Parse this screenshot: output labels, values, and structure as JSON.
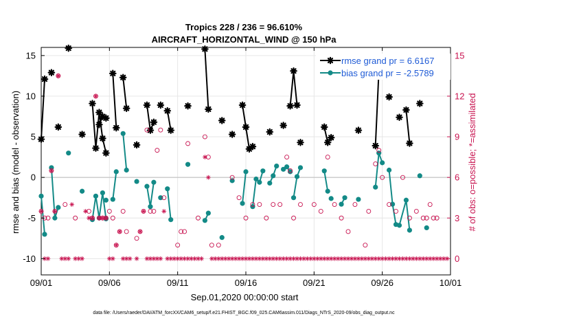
{
  "chart_data": {
    "type": "line",
    "title": "Tropics 228 / 236 = 96.610%",
    "subtitle": "AIRCRAFT_HORIZONTAL_WIND @ 150 hPa",
    "xlabel": "Sep.01,2020 00:00:00 start",
    "ylabel": "rmse and bias (model - observation)",
    "y2label": "# of obs: o=possible; *=assimilated",
    "footer": "data file: /Users/raeder/DAI/ATM_forcXX/CAM6_setup/f.e21.FHIST_BGC.f09_025.CAM6assim.011/Diags_NTrS_2020-09/obs_diag_output.nc",
    "xlim": [
      0,
      30
    ],
    "ylim": [
      -12,
      16
    ],
    "y2lim": [
      -1.2,
      15.6
    ],
    "xticks": [
      0,
      5,
      10,
      15,
      20,
      25,
      30
    ],
    "xtick_labels": [
      "09/01",
      "09/06",
      "09/11",
      "09/16",
      "09/21",
      "09/26",
      "10/01"
    ],
    "yticks": [
      -10,
      -5,
      0,
      5,
      10,
      15
    ],
    "ytick_labels": [
      "-10",
      "-5",
      "0",
      "5",
      "10",
      "15"
    ],
    "y2ticks": [
      0,
      3,
      6,
      9,
      12,
      15
    ],
    "y2tick_labels": [
      "0",
      "3",
      "6",
      "9",
      "12",
      "15"
    ],
    "colors": {
      "rmse": "#000000",
      "bias": "#138a87",
      "obs": "#c8124f",
      "legend_text": "#1f5bd6",
      "zero_line": "#c8c8c8"
    },
    "series": [
      {
        "name": "rmse grand pr = 6.6167",
        "color": "#000000",
        "marker": "asterisk",
        "segments": [
          [
            [
              0.0,
              4.7
            ],
            [
              0.25,
              12.1
            ]
          ],
          [
            [
              0.75,
              12.9
            ]
          ],
          [
            [
              1.25,
              6.2
            ]
          ],
          [
            [
              2.0,
              15.9
            ]
          ],
          [
            [
              3.0,
              5.3
            ]
          ],
          [
            [
              3.75,
              9.1
            ],
            [
              4.0,
              3.6
            ],
            [
              4.25,
              8.0
            ],
            [
              4.5,
              4.8
            ],
            [
              4.75,
              3.0
            ]
          ],
          [
            [
              4.25,
              6.5
            ],
            [
              4.5,
              7.5
            ],
            [
              4.75,
              7.3
            ]
          ],
          [
            [
              5.25,
              12.8
            ],
            [
              5.5,
              6.1
            ]
          ],
          [
            [
              6.0,
              12.3
            ],
            [
              6.25,
              8.5
            ]
          ],
          [
            [
              7.0,
              4.0
            ]
          ],
          [
            [
              7.75,
              8.9
            ],
            [
              8.0,
              5.8
            ],
            [
              8.25,
              6.8
            ]
          ],
          [
            [
              8.75,
              8.9
            ]
          ],
          [
            [
              9.25,
              8.2
            ],
            [
              9.5,
              5.8
            ]
          ],
          [
            [
              10.75,
              8.8
            ]
          ],
          [
            [
              12.0,
              15.8
            ],
            [
              12.25,
              8.4
            ]
          ],
          [
            [
              13.25,
              7.0
            ]
          ],
          [
            [
              14.0,
              5.3
            ]
          ],
          [
            [
              14.75,
              8.9
            ],
            [
              15.0,
              6.2
            ],
            [
              15.25,
              3.5
            ]
          ],
          [
            [
              15.5,
              3.8
            ]
          ],
          [
            [
              16.75,
              5.6
            ]
          ],
          [
            [
              17.75,
              6.4
            ]
          ],
          [
            [
              18.25,
              8.8
            ],
            [
              18.5,
              13.1
            ],
            [
              18.75,
              8.9
            ]
          ],
          [
            [
              19.0,
              4.3
            ]
          ],
          [
            [
              20.75,
              6.2
            ],
            [
              21.0,
              4.3
            ]
          ],
          [
            [
              21.25,
              4.9
            ]
          ],
          [
            [
              22.0,
              14.3
            ]
          ],
          [
            [
              23.25,
              5.8
            ]
          ],
          [
            [
              24.5,
              3.9
            ],
            [
              24.75,
              13.1
            ]
          ],
          [
            [
              25.5,
              9.9
            ]
          ],
          [
            [
              26.25,
              7.4
            ]
          ],
          [
            [
              26.75,
              8.3
            ],
            [
              27.0,
              4.2
            ]
          ],
          [
            [
              27.75,
              9.1
            ]
          ]
        ]
      },
      {
        "name": "bias grand pr = -2.5789",
        "color": "#138a87",
        "marker": "dot",
        "segments": [
          [
            [
              0.0,
              -2.3
            ],
            [
              0.25,
              -7.0
            ]
          ],
          [
            [
              0.75,
              1.2
            ],
            [
              1.0,
              -5.0
            ],
            [
              1.25,
              -3.7
            ]
          ],
          [
            [
              2.0,
              3.0
            ]
          ],
          [
            [
              3.0,
              -1.7
            ]
          ],
          [
            [
              3.75,
              -5.2
            ],
            [
              4.0,
              -2.3
            ],
            [
              4.25,
              -5.0
            ],
            [
              4.5,
              -1.9
            ],
            [
              4.75,
              -5.1
            ]
          ],
          [
            [
              4.75,
              -2.8
            ]
          ],
          [
            [
              5.25,
              -2.7
            ],
            [
              5.5,
              0.7
            ]
          ],
          [
            [
              6.0,
              5.4
            ],
            [
              6.25,
              0.9
            ]
          ],
          [
            [
              7.0,
              -0.5
            ]
          ],
          [
            [
              7.75,
              -1.1
            ],
            [
              8.0,
              -3.6
            ],
            [
              8.25,
              -0.6
            ]
          ],
          [
            [
              8.75,
              -2.5
            ]
          ],
          [
            [
              9.25,
              -1.4
            ],
            [
              9.5,
              -5.2
            ]
          ],
          [
            [
              10.75,
              1.6
            ]
          ],
          [
            [
              12.0,
              -5.3
            ],
            [
              12.25,
              -4.4
            ]
          ],
          [
            [
              13.25,
              -7.4
            ]
          ],
          [
            [
              14.0,
              -0.4
            ]
          ],
          [
            [
              14.75,
              -3.2
            ],
            [
              15.0,
              0.7
            ]
          ],
          [
            [
              15.5,
              -3.6
            ],
            [
              15.75,
              -0.2
            ],
            [
              16.0,
              -0.6
            ],
            [
              16.25,
              0.8
            ]
          ],
          [
            [
              16.75,
              -0.7
            ],
            [
              17.0,
              0.2
            ],
            [
              17.25,
              1.4
            ]
          ],
          [
            [
              17.75,
              1.0
            ],
            [
              18.0,
              1.3
            ],
            [
              18.25,
              0.7
            ]
          ],
          [
            [
              18.5,
              -2.5
            ],
            [
              18.75,
              0.1
            ],
            [
              19.0,
              1.2
            ]
          ],
          [
            [
              20.75,
              0.8
            ],
            [
              21.0,
              -1.7
            ]
          ],
          [
            [
              21.25,
              -2.6
            ]
          ],
          [
            [
              22.0,
              -3.3
            ],
            [
              22.25,
              -2.5
            ]
          ],
          [
            [
              23.25,
              -2.7
            ]
          ],
          [
            [
              24.5,
              -1.2
            ],
            [
              24.75,
              3.0
            ],
            [
              25.0,
              1.8
            ]
          ],
          [
            [
              25.5,
              0.9
            ],
            [
              25.75,
              -3.3
            ],
            [
              26.0,
              -5.8
            ]
          ],
          [
            [
              26.25,
              -5.9
            ],
            [
              26.75,
              -2.8
            ],
            [
              27.0,
              -6.5
            ]
          ],
          [
            [
              27.75,
              0.2
            ]
          ],
          [
            [
              28.25,
              -6.2
            ]
          ]
        ]
      }
    ],
    "obs_possible": [
      [
        0.0,
        3.5
      ],
      [
        0.25,
        3.0
      ],
      [
        0.5,
        3.0
      ],
      [
        0.75,
        6.5
      ],
      [
        1.0,
        3.5
      ],
      [
        1.25,
        13.5
      ],
      [
        1.75,
        4.0
      ],
      [
        2.5,
        3.0
      ],
      [
        3.5,
        3.5
      ],
      [
        3.75,
        3.0
      ],
      [
        4.0,
        12.0
      ],
      [
        4.25,
        3.0
      ],
      [
        4.5,
        3.0
      ],
      [
        4.75,
        3.0
      ],
      [
        5.0,
        3.5
      ],
      [
        5.25,
        3.0
      ],
      [
        5.5,
        1.0
      ],
      [
        5.75,
        2.0
      ],
      [
        6.0,
        3.5
      ],
      [
        6.25,
        2.0
      ],
      [
        7.0,
        1.5
      ],
      [
        7.25,
        2.0
      ],
      [
        7.5,
        3.5
      ],
      [
        7.75,
        9.5
      ],
      [
        8.0,
        3.5
      ],
      [
        8.25,
        3.5
      ],
      [
        8.5,
        8.0
      ],
      [
        8.75,
        9.5
      ],
      [
        9.0,
        4.5
      ],
      [
        10.0,
        1.0
      ],
      [
        10.25,
        2.0
      ],
      [
        10.5,
        2.0
      ],
      [
        10.75,
        8.5
      ],
      [
        11.5,
        3.0
      ],
      [
        12.0,
        9.0
      ],
      [
        12.25,
        7.5
      ],
      [
        12.5,
        1.0
      ],
      [
        13.0,
        1.0
      ],
      [
        14.0,
        6.0
      ],
      [
        14.5,
        4.5
      ],
      [
        15.0,
        3.0
      ],
      [
        15.5,
        4.0
      ],
      [
        16.0,
        4.0
      ],
      [
        16.5,
        3.0
      ],
      [
        17.0,
        4.0
      ],
      [
        17.5,
        4.0
      ],
      [
        18.0,
        7.5
      ],
      [
        18.25,
        6.5
      ],
      [
        18.5,
        3.0
      ],
      [
        19.0,
        4.0
      ],
      [
        20.0,
        4.0
      ],
      [
        20.5,
        3.5
      ],
      [
        21.0,
        7.5
      ],
      [
        21.5,
        4.0
      ],
      [
        22.0,
        3.0
      ],
      [
        22.5,
        2.0
      ],
      [
        23.0,
        4.0
      ],
      [
        23.75,
        1.0
      ],
      [
        24.0,
        3.5
      ],
      [
        24.5,
        7.0
      ],
      [
        24.75,
        8.0
      ],
      [
        25.0,
        6.0
      ],
      [
        25.5,
        4.0
      ],
      [
        26.0,
        3.5
      ],
      [
        26.5,
        6.0
      ],
      [
        27.0,
        3.0
      ],
      [
        27.5,
        3.5
      ],
      [
        28.0,
        3.0
      ],
      [
        28.25,
        3.0
      ],
      [
        28.5,
        4.0
      ],
      [
        28.75,
        3.0
      ],
      [
        29.0,
        3.0
      ]
    ],
    "obs_assimilated": [
      [
        0.0,
        3.5
      ],
      [
        0.25,
        0.0
      ],
      [
        0.5,
        0.0
      ],
      [
        0.75,
        6.5
      ],
      [
        1.0,
        3.5
      ],
      [
        1.25,
        13.5
      ],
      [
        1.5,
        0.0
      ],
      [
        1.75,
        0.0
      ],
      [
        2.0,
        0.0
      ],
      [
        2.25,
        4.0
      ],
      [
        2.5,
        0.0
      ],
      [
        2.75,
        0.0
      ],
      [
        3.0,
        0.0
      ],
      [
        3.25,
        3.5
      ],
      [
        3.5,
        3.0
      ],
      [
        3.75,
        3.0
      ],
      [
        4.0,
        12.0
      ],
      [
        4.25,
        3.0
      ],
      [
        4.5,
        3.0
      ],
      [
        4.75,
        3.0
      ],
      [
        5.0,
        0.0
      ],
      [
        5.25,
        0.0
      ],
      [
        5.5,
        1.0
      ],
      [
        5.75,
        2.0
      ],
      [
        6.0,
        0.0
      ],
      [
        6.25,
        0.0
      ],
      [
        6.5,
        0.0
      ],
      [
        7.0,
        0.0
      ],
      [
        7.25,
        2.0
      ],
      [
        7.5,
        3.5
      ],
      [
        7.75,
        0.0
      ],
      [
        8.0,
        0.0
      ],
      [
        8.25,
        0.0
      ],
      [
        8.5,
        0.0
      ],
      [
        8.75,
        0.0
      ],
      [
        9.0,
        3.5
      ],
      [
        9.25,
        0.0
      ],
      [
        9.5,
        0.0
      ],
      [
        9.75,
        0.0
      ],
      [
        10.0,
        0.0
      ],
      [
        10.25,
        0.0
      ],
      [
        10.5,
        0.0
      ],
      [
        10.75,
        0.0
      ],
      [
        11.0,
        0.0
      ],
      [
        11.25,
        0.0
      ],
      [
        11.5,
        0.0
      ],
      [
        11.75,
        0.0
      ],
      [
        12.0,
        7.5
      ],
      [
        12.25,
        6.0
      ],
      [
        12.5,
        0.0
      ],
      [
        12.75,
        0.0
      ],
      [
        13.0,
        0.0
      ],
      [
        13.25,
        0.0
      ],
      [
        13.5,
        0.0
      ],
      [
        13.75,
        0.0
      ],
      [
        14.0,
        0.0
      ],
      [
        14.25,
        0.0
      ],
      [
        14.5,
        0.0
      ],
      [
        14.75,
        0.0
      ],
      [
        15.0,
        0.0
      ],
      [
        15.25,
        0.0
      ],
      [
        15.5,
        0.0
      ],
      [
        15.75,
        0.0
      ],
      [
        16.0,
        0.0
      ],
      [
        16.25,
        0.0
      ],
      [
        16.5,
        0.0
      ],
      [
        16.75,
        0.0
      ],
      [
        17.0,
        0.0
      ],
      [
        17.25,
        0.0
      ],
      [
        17.5,
        0.0
      ],
      [
        17.75,
        0.0
      ],
      [
        18.0,
        0.0
      ],
      [
        18.25,
        0.0
      ],
      [
        18.5,
        0.0
      ],
      [
        18.75,
        0.0
      ],
      [
        19.0,
        0.0
      ],
      [
        19.25,
        0.0
      ],
      [
        19.5,
        0.0
      ],
      [
        19.75,
        0.0
      ],
      [
        20.0,
        0.0
      ],
      [
        20.25,
        0.0
      ],
      [
        20.5,
        0.0
      ],
      [
        20.75,
        0.0
      ],
      [
        21.0,
        0.0
      ],
      [
        21.25,
        0.0
      ],
      [
        21.5,
        0.0
      ],
      [
        21.75,
        0.0
      ],
      [
        22.0,
        0.0
      ],
      [
        22.25,
        0.0
      ],
      [
        22.5,
        0.0
      ],
      [
        22.75,
        0.0
      ],
      [
        23.0,
        0.0
      ],
      [
        23.25,
        0.0
      ],
      [
        23.5,
        0.0
      ],
      [
        23.75,
        0.0
      ],
      [
        24.0,
        0.0
      ],
      [
        24.25,
        0.0
      ],
      [
        24.5,
        0.0
      ],
      [
        24.75,
        0.0
      ],
      [
        25.0,
        0.0
      ],
      [
        25.25,
        0.0
      ],
      [
        25.5,
        0.0
      ],
      [
        25.75,
        0.0
      ],
      [
        26.0,
        0.0
      ],
      [
        26.25,
        0.0
      ],
      [
        26.5,
        0.0
      ],
      [
        26.75,
        0.0
      ],
      [
        27.0,
        0.0
      ],
      [
        27.25,
        0.0
      ],
      [
        27.5,
        0.0
      ],
      [
        27.75,
        0.0
      ],
      [
        28.0,
        0.0
      ],
      [
        28.25,
        0.0
      ],
      [
        28.5,
        0.0
      ],
      [
        28.75,
        0.0
      ],
      [
        29.0,
        0.0
      ],
      [
        29.25,
        0.0
      ],
      [
        29.5,
        0.0
      ],
      [
        29.75,
        0.0
      ]
    ],
    "legend": {
      "position": "top-right",
      "entries": [
        "rmse grand pr = 6.6167",
        "bias grand pr = -2.5789"
      ]
    }
  }
}
